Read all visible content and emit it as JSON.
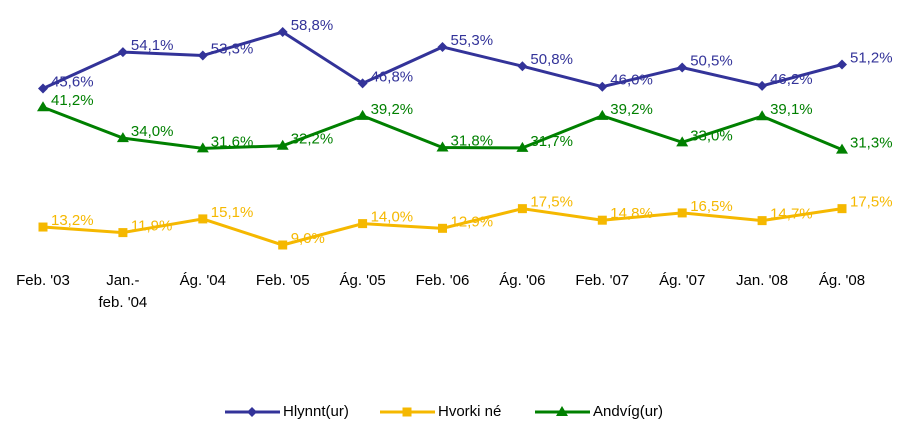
{
  "chart_data": {
    "type": "line",
    "categories": [
      "Feb. '03",
      "Jan.-\nfeb. '04",
      "Ág. '04",
      "Feb. '05",
      "Ág. '05",
      "Feb. '06",
      "Ág. '06",
      "Feb. '07",
      "Ág. '07",
      "Jan. '08",
      "Ág. '08"
    ],
    "series": [
      {
        "name": "Hlynnt(ur)",
        "color": "#333399",
        "marker": "diamond",
        "values": [
          45.6,
          54.1,
          53.3,
          58.8,
          46.8,
          55.3,
          50.8,
          46.0,
          50.5,
          46.2,
          51.2
        ],
        "value_labels": [
          "45,6%",
          "54,1%",
          "53,3%",
          "58,8%",
          "46,8%",
          "55,3%",
          "50,8%",
          "46,0%",
          "50,5%",
          "46,2%",
          "51,2%"
        ]
      },
      {
        "name": "Hvorki né",
        "color": "#f5b800",
        "marker": "square",
        "values": [
          13.2,
          11.9,
          15.1,
          9.0,
          14.0,
          12.9,
          17.5,
          14.8,
          16.5,
          14.7,
          17.5
        ],
        "value_labels": [
          "13,2%",
          "11,9%",
          "15,1%",
          "9,0%",
          "14,0%",
          "12,9%",
          "17,5%",
          "14,8%",
          "16,5%",
          "14,7%",
          "17,5%"
        ]
      },
      {
        "name": "Andvíg(ur)",
        "color": "#008000",
        "marker": "triangle",
        "values": [
          41.2,
          34.0,
          31.6,
          32.2,
          39.2,
          31.8,
          31.7,
          39.2,
          33.0,
          39.1,
          31.3
        ],
        "value_labels": [
          "41,2%",
          "34,0%",
          "31,6%",
          "32,2%",
          "39,2%",
          "31,8%",
          "31,7%",
          "39,2%",
          "33,0%",
          "39,1%",
          "31,3%"
        ]
      }
    ],
    "legend": "bottom"
  }
}
